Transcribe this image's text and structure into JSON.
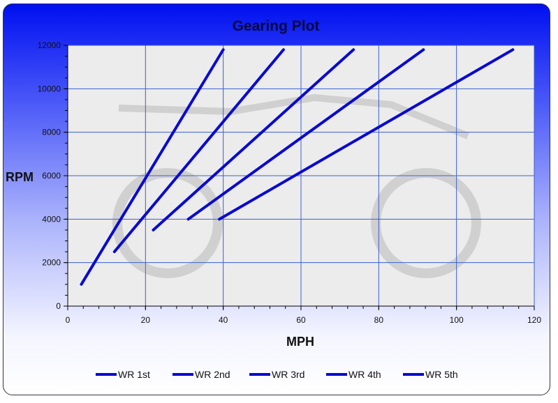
{
  "chart_data": {
    "type": "line",
    "title": "Gearing Plot",
    "xlabel": "MPH",
    "ylabel": "RPM",
    "xlim": [
      0,
      120
    ],
    "ylim": [
      0,
      12000
    ],
    "xticks": [
      "0",
      "20",
      "40",
      "60",
      "80",
      "100",
      "120"
    ],
    "yticks": [
      "0",
      "2000",
      "4000",
      "6000",
      "8000",
      "10000",
      "12000"
    ],
    "grid": true,
    "legend_position": "bottom",
    "line_color": "#0a0ad0",
    "series": [
      {
        "name": "WR 1st",
        "x": [
          3.5,
          40
        ],
        "y": [
          1000,
          11800
        ]
      },
      {
        "name": "WR 2nd",
        "x": [
          12,
          55.5
        ],
        "y": [
          2500,
          11800
        ]
      },
      {
        "name": "WR 3rd",
        "x": [
          22,
          73.5
        ],
        "y": [
          3500,
          11800
        ]
      },
      {
        "name": "WR 4th",
        "x": [
          31,
          91.5
        ],
        "y": [
          4000,
          11800
        ]
      },
      {
        "name": "WR 5th",
        "x": [
          39,
          114.5
        ],
        "y": [
          4000,
          11800
        ]
      }
    ]
  }
}
